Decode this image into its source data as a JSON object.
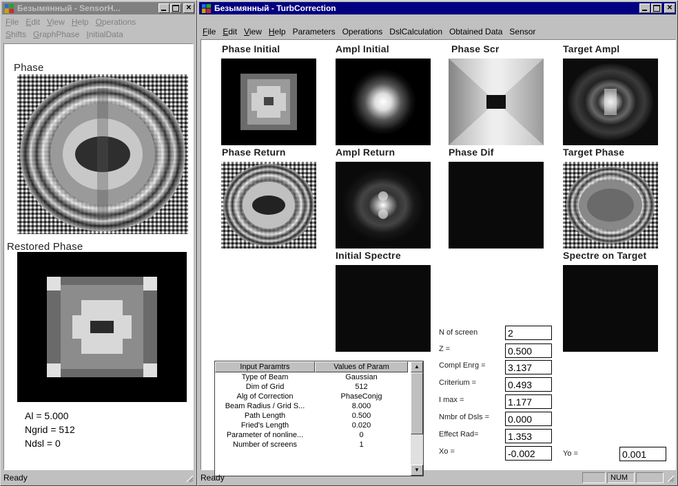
{
  "left_window": {
    "title": "Безымянный - SensorH...",
    "menu1": [
      "File",
      "Edit",
      "View",
      "Help",
      "Operations"
    ],
    "menu2": [
      "Shifts",
      "GraphPhase",
      "InitialData"
    ],
    "phase_label": "Phase",
    "restored_label": "Restored Phase",
    "info": [
      "Al = 5.000",
      "Ngrid = 512",
      "Ndsl =  0"
    ],
    "status": "Ready"
  },
  "right_window": {
    "title": "Безымянный - TurbCorrection",
    "menu": [
      "File",
      "Edit",
      "View",
      "Help",
      "Parameters",
      "Operations",
      "DslCalculation",
      "Obtained Data",
      "Sensor"
    ],
    "panels": {
      "phase_initial": "Phase Initial",
      "ampl_initial": "Ampl Initial",
      "phase_scr": "Phase Scr",
      "target_ampl": "Target Ampl",
      "phase_return": "Phase Return",
      "ampl_return": "Ampl Return",
      "phase_dif": "Phase Dif",
      "target_phase": "Target Phase",
      "initial_spectre": "Initial Spectre",
      "spectre_target": "Spectre on Target"
    },
    "fields": {
      "n_screen": {
        "label": "N of screen",
        "value": "2"
      },
      "z": {
        "label": "Z =",
        "value": "0.500"
      },
      "compl": {
        "label": "Compl Enrg =",
        "value": "3.137"
      },
      "criterium": {
        "label": "Criterium =",
        "value": "0.493"
      },
      "imax": {
        "label": "I max =",
        "value": "1.177"
      },
      "nmbr": {
        "label": "Nmbr of Dsls =",
        "value": "0.000"
      },
      "effect": {
        "label": "Effect Rad=",
        "value": "1.353"
      },
      "xo": {
        "label": "Xo =",
        "value": "-0.002"
      },
      "yo": {
        "label": "Yo =",
        "value": "0.001"
      }
    },
    "table": {
      "headers": [
        "Input Paramtrs",
        "Values of Param"
      ],
      "rows": [
        [
          "Type of Beam",
          "Gaussian"
        ],
        [
          "Dim of Grid",
          "512"
        ],
        [
          "Alg of Correction",
          "PhaseConjg"
        ],
        [
          "Beam Radius / Grid S...",
          "8.000"
        ],
        [
          "Path Length",
          "0.500"
        ],
        [
          "Fried's Length",
          "0.020"
        ],
        [
          "Parameter of nonline...",
          "0"
        ],
        [
          "Number of screens",
          "1"
        ]
      ]
    },
    "status": "Ready",
    "status_num": "NUM"
  }
}
